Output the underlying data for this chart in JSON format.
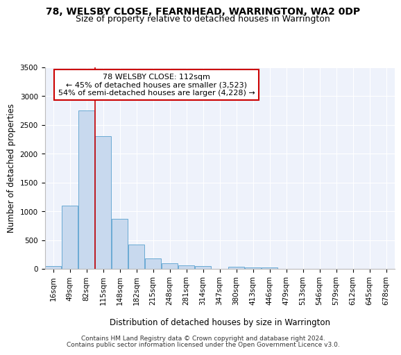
{
  "title": "78, WELSBY CLOSE, FEARNHEAD, WARRINGTON, WA2 0DP",
  "subtitle": "Size of property relative to detached houses in Warrington",
  "xlabel": "Distribution of detached houses by size in Warrington",
  "ylabel": "Number of detached properties",
  "footnote1": "Contains HM Land Registry data © Crown copyright and database right 2024.",
  "footnote2": "Contains public sector information licensed under the Open Government Licence v3.0.",
  "categories": [
    "16sqm",
    "49sqm",
    "82sqm",
    "115sqm",
    "148sqm",
    "182sqm",
    "215sqm",
    "248sqm",
    "281sqm",
    "314sqm",
    "347sqm",
    "380sqm",
    "413sqm",
    "446sqm",
    "479sqm",
    "513sqm",
    "546sqm",
    "579sqm",
    "612sqm",
    "645sqm",
    "678sqm"
  ],
  "values": [
    50,
    1100,
    2750,
    2300,
    870,
    425,
    180,
    100,
    65,
    50,
    0,
    35,
    30,
    20,
    0,
    0,
    0,
    0,
    0,
    0,
    0
  ],
  "bar_color": "#c8d9ee",
  "bar_edge_color": "#6aaad4",
  "background_color": "#eef2fb",
  "grid_color": "#ffffff",
  "vline_x": 2.5,
  "vline_color": "#cc0000",
  "annotation_text_line1": "78 WELSBY CLOSE: 112sqm",
  "annotation_text_line2": "← 45% of detached houses are smaller (3,523)",
  "annotation_text_line3": "54% of semi-detached houses are larger (4,228) →",
  "annotation_box_color": "#cc0000",
  "ylim": [
    0,
    3500
  ],
  "yticks": [
    0,
    500,
    1000,
    1500,
    2000,
    2500,
    3000,
    3500
  ],
  "title_fontsize": 10,
  "subtitle_fontsize": 9,
  "axis_label_fontsize": 8.5,
  "tick_fontsize": 7.5,
  "annotation_fontsize": 8,
  "footnote_fontsize": 6.5
}
